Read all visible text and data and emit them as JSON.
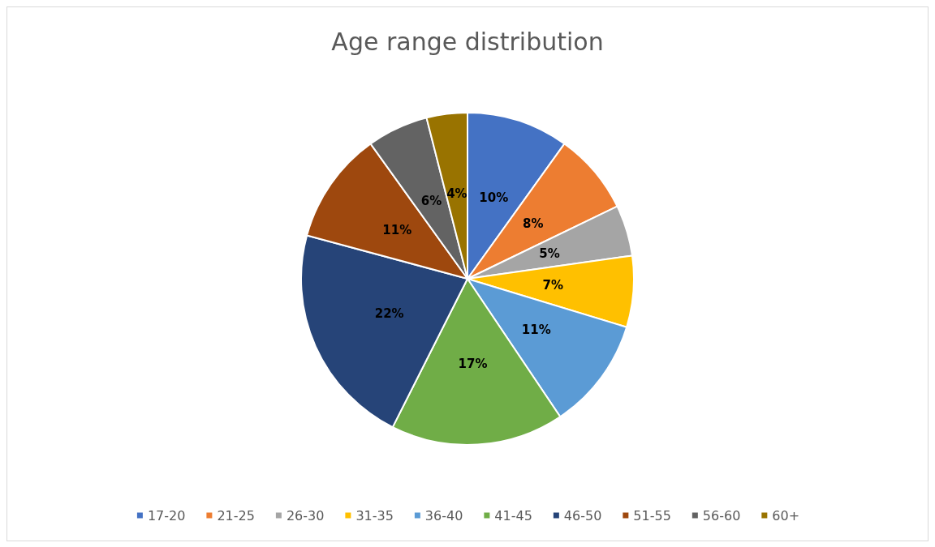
{
  "chart_data": {
    "type": "pie",
    "title": "Age range distribution",
    "categories": [
      "17-20",
      "21-25",
      "26-30",
      "31-35",
      "36-40",
      "41-45",
      "46-50",
      "51-55",
      "56-60",
      "60+"
    ],
    "values": [
      10,
      8,
      5,
      7,
      11,
      17,
      22,
      11,
      6,
      4
    ],
    "colors": [
      "#4472c4",
      "#ed7d31",
      "#a5a5a5",
      "#ffc000",
      "#5b9bd5",
      "#70ad47",
      "#264478",
      "#9e480e",
      "#636363",
      "#997300"
    ],
    "value_labels": [
      "10%",
      "8%",
      "5%",
      "7%",
      "11%",
      "17%",
      "22%",
      "11%",
      "6%",
      "4%"
    ],
    "legend": "bottom"
  }
}
